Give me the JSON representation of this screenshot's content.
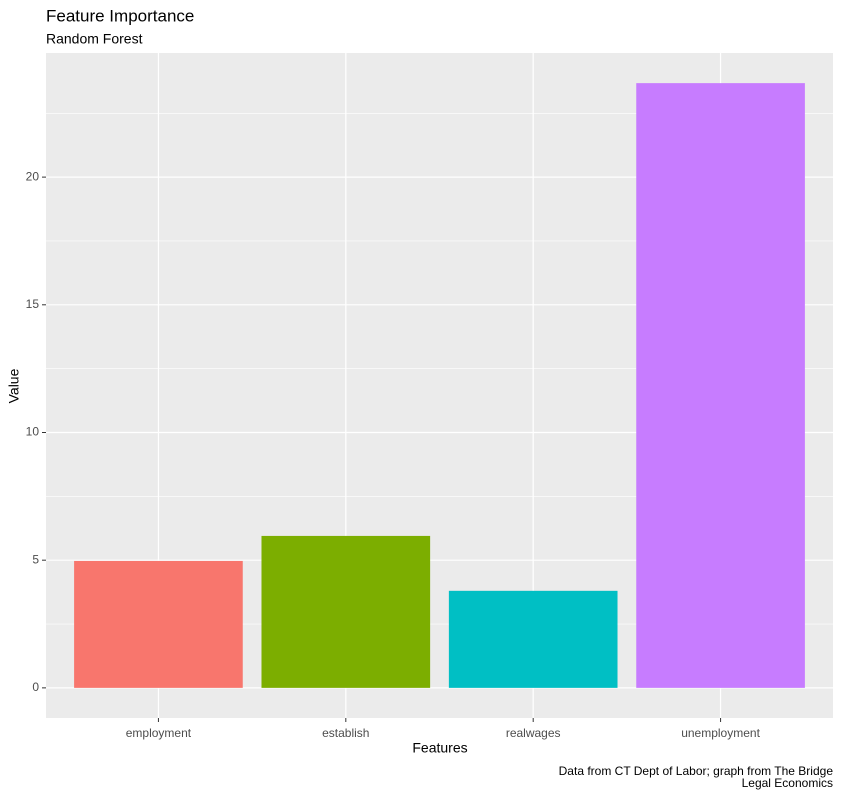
{
  "chart_data": {
    "type": "bar",
    "title": "Feature Importance",
    "subtitle": "Random Forest",
    "x_label": "Features",
    "y_label": "Value",
    "categories": [
      "employment",
      "establish",
      "realwages",
      "unemployment"
    ],
    "values": [
      4.97,
      5.95,
      3.8,
      23.68
    ],
    "colors": [
      "#F8766D",
      "#7CAE00",
      "#00BFC4",
      "#C77CFF"
    ],
    "ylim": [
      -1.18,
      24.86
    ],
    "yticks": [
      0,
      5,
      10,
      15,
      20
    ],
    "minor_yticks": [
      2.5,
      7.5,
      12.5,
      17.5,
      22.5
    ],
    "grid": true,
    "caption": [
      "Data from CT Dept of Labor; graph from The Bridge",
      "Legal Economics"
    ]
  }
}
